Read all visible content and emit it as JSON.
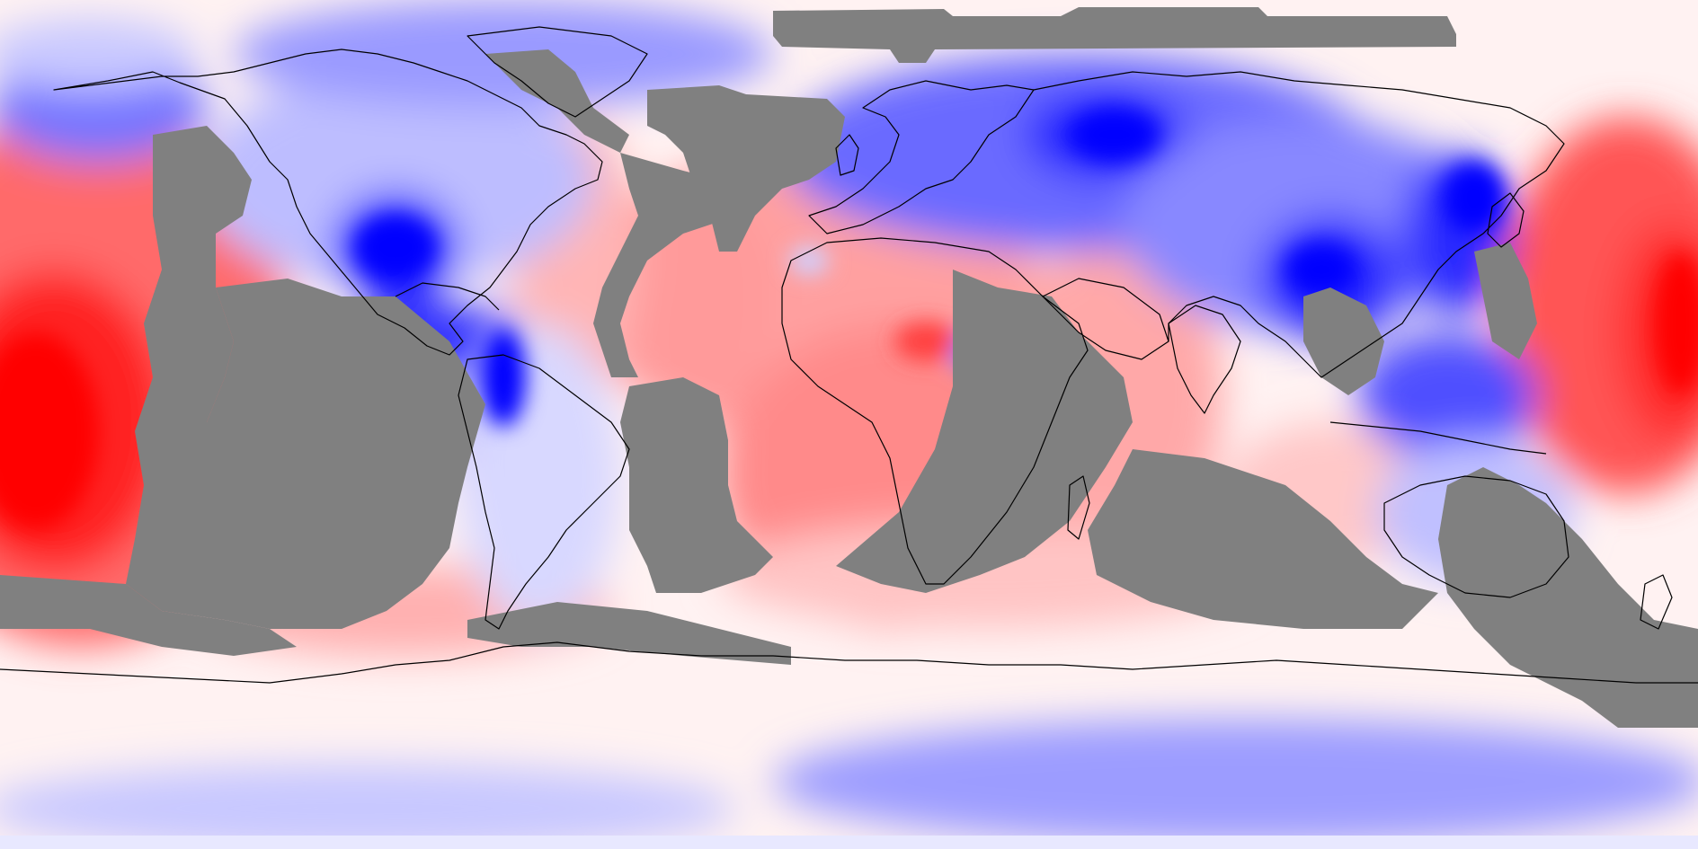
{
  "map": {
    "projection": "equirectangular",
    "colormap": {
      "low": "#0000ff",
      "mid": "#ffffff",
      "high": "#ff0000"
    },
    "mask_color": "#808080",
    "coastline_color": "#000000",
    "legend": null,
    "title": ""
  }
}
